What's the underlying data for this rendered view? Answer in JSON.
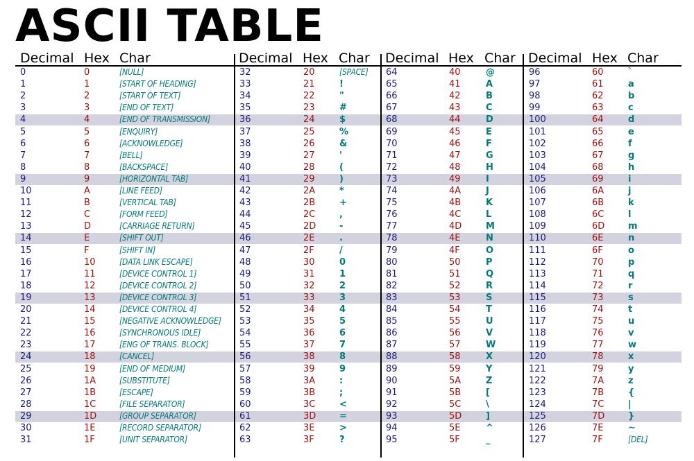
{
  "title": "ASCII TABLE",
  "headers": {
    "decimal": "Decimal",
    "hex": "Hex",
    "char": "Char"
  },
  "rows": [
    [
      "0",
      "0",
      "[NULL]"
    ],
    [
      "1",
      "1",
      "[START OF HEADING]"
    ],
    [
      "2",
      "2",
      "[START OF TEXT]"
    ],
    [
      "3",
      "3",
      "[END OF TEXT]"
    ],
    [
      "4",
      "4",
      "[END OF TRANSMISSION]"
    ],
    [
      "5",
      "5",
      "[ENQUIRY]"
    ],
    [
      "6",
      "6",
      "[ACKNOWLEDGE]"
    ],
    [
      "7",
      "7",
      "[BELL]"
    ],
    [
      "8",
      "8",
      "[BACKSPACE]"
    ],
    [
      "9",
      "9",
      "[HORIZONTAL TAB]"
    ],
    [
      "10",
      "A",
      "[LINE FEED]"
    ],
    [
      "11",
      "B",
      "[VERTICAL TAB]"
    ],
    [
      "12",
      "C",
      "[FORM FEED]"
    ],
    [
      "13",
      "D",
      "[CARRIAGE RETURN]"
    ],
    [
      "14",
      "E",
      "[SHIFT OUT]"
    ],
    [
      "15",
      "F",
      "[SHIFT IN]"
    ],
    [
      "16",
      "10",
      "[DATA LINK ESCAPE]"
    ],
    [
      "17",
      "11",
      "[DEVICE CONTROL 1]"
    ],
    [
      "18",
      "12",
      "[DEVICE CONTROL 2]"
    ],
    [
      "19",
      "13",
      "[DEVICE CONTROL 3]"
    ],
    [
      "20",
      "14",
      "[DEVICE CONTROL 4]"
    ],
    [
      "21",
      "15",
      "[NEGATIVE ACKNOWLEDGE]"
    ],
    [
      "22",
      "16",
      "[SYNCHRONOUS IDLE]"
    ],
    [
      "23",
      "17",
      "[ENG OF TRANS. BLOCK]"
    ],
    [
      "24",
      "18",
      "[CANCEL]"
    ],
    [
      "25",
      "19",
      "[END OF MEDIUM]"
    ],
    [
      "26",
      "1A",
      "[SUBSTITUTE]"
    ],
    [
      "27",
      "1B",
      "[ESCAPE]"
    ],
    [
      "28",
      "1C",
      "[FILE SEPARATOR]"
    ],
    [
      "29",
      "1D",
      "[GROUP SEPARATOR]"
    ],
    [
      "30",
      "1E",
      "[RECORD SEPARATOR]"
    ],
    [
      "31",
      "1F",
      "[UNIT SEPARATOR]"
    ],
    [
      "32",
      "20",
      "[SPACE]"
    ],
    [
      "33",
      "21",
      "!"
    ],
    [
      "34",
      "22",
      "\""
    ],
    [
      "35",
      "23",
      "#"
    ],
    [
      "36",
      "24",
      "$"
    ],
    [
      "37",
      "25",
      "%"
    ],
    [
      "38",
      "26",
      "&"
    ],
    [
      "39",
      "27",
      "'"
    ],
    [
      "40",
      "28",
      "("
    ],
    [
      "41",
      "29",
      ")"
    ],
    [
      "42",
      "2A",
      "*"
    ],
    [
      "43",
      "2B",
      "+"
    ],
    [
      "44",
      "2C",
      ","
    ],
    [
      "45",
      "2D",
      "-"
    ],
    [
      "46",
      "2E",
      "."
    ],
    [
      "47",
      "2F",
      "/"
    ],
    [
      "48",
      "30",
      "0"
    ],
    [
      "49",
      "31",
      "1"
    ],
    [
      "50",
      "32",
      "2"
    ],
    [
      "51",
      "33",
      "3"
    ],
    [
      "52",
      "34",
      "4"
    ],
    [
      "53",
      "35",
      "5"
    ],
    [
      "54",
      "36",
      "6"
    ],
    [
      "55",
      "37",
      "7"
    ],
    [
      "56",
      "38",
      "8"
    ],
    [
      "57",
      "39",
      "9"
    ],
    [
      "58",
      "3A",
      ":"
    ],
    [
      "59",
      "3B",
      ";"
    ],
    [
      "60",
      "3C",
      "<"
    ],
    [
      "61",
      "3D",
      "="
    ],
    [
      "62",
      "3E",
      ">"
    ],
    [
      "63",
      "3F",
      "?"
    ],
    [
      "64",
      "40",
      "@"
    ],
    [
      "65",
      "41",
      "A"
    ],
    [
      "66",
      "42",
      "B"
    ],
    [
      "67",
      "43",
      "C"
    ],
    [
      "68",
      "44",
      "D"
    ],
    [
      "69",
      "45",
      "E"
    ],
    [
      "70",
      "46",
      "F"
    ],
    [
      "71",
      "47",
      "G"
    ],
    [
      "72",
      "48",
      "H"
    ],
    [
      "73",
      "49",
      "I"
    ],
    [
      "74",
      "4A",
      "J"
    ],
    [
      "75",
      "4B",
      "K"
    ],
    [
      "76",
      "4C",
      "L"
    ],
    [
      "77",
      "4D",
      "M"
    ],
    [
      "78",
      "4E",
      "N"
    ],
    [
      "79",
      "4F",
      "O"
    ],
    [
      "80",
      "50",
      "P"
    ],
    [
      "81",
      "51",
      "Q"
    ],
    [
      "82",
      "52",
      "R"
    ],
    [
      "83",
      "53",
      "S"
    ],
    [
      "84",
      "54",
      "T"
    ],
    [
      "85",
      "55",
      "U"
    ],
    [
      "86",
      "56",
      "V"
    ],
    [
      "87",
      "57",
      "W"
    ],
    [
      "88",
      "58",
      "X"
    ],
    [
      "89",
      "59",
      "Y"
    ],
    [
      "90",
      "5A",
      "Z"
    ],
    [
      "91",
      "5B",
      "["
    ],
    [
      "92",
      "5C",
      "\\"
    ],
    [
      "93",
      "5D",
      "]"
    ],
    [
      "94",
      "5E",
      "^"
    ],
    [
      "95",
      "5F",
      "_"
    ],
    [
      "96",
      "60",
      "`"
    ],
    [
      "97",
      "61",
      "a"
    ],
    [
      "98",
      "62",
      "b"
    ],
    [
      "99",
      "63",
      "c"
    ],
    [
      "100",
      "64",
      "d"
    ],
    [
      "101",
      "65",
      "e"
    ],
    [
      "102",
      "66",
      "f"
    ],
    [
      "103",
      "67",
      "g"
    ],
    [
      "104",
      "68",
      "h"
    ],
    [
      "105",
      "69",
      "i"
    ],
    [
      "106",
      "6A",
      "j"
    ],
    [
      "107",
      "6B",
      "k"
    ],
    [
      "108",
      "6C",
      "l"
    ],
    [
      "109",
      "6D",
      "m"
    ],
    [
      "110",
      "6E",
      "n"
    ],
    [
      "111",
      "6F",
      "o"
    ],
    [
      "112",
      "70",
      "p"
    ],
    [
      "113",
      "71",
      "q"
    ],
    [
      "114",
      "72",
      "r"
    ],
    [
      "115",
      "73",
      "s"
    ],
    [
      "116",
      "74",
      "t"
    ],
    [
      "117",
      "75",
      "u"
    ],
    [
      "118",
      "76",
      "v"
    ],
    [
      "119",
      "77",
      "w"
    ],
    [
      "120",
      "78",
      "x"
    ],
    [
      "121",
      "79",
      "y"
    ],
    [
      "122",
      "7A",
      "z"
    ],
    [
      "123",
      "7B",
      "{"
    ],
    [
      "124",
      "7C",
      "|"
    ],
    [
      "125",
      "7D",
      "}"
    ],
    [
      "126",
      "7E",
      "~"
    ],
    [
      "127",
      "7F",
      "[DEL]"
    ]
  ],
  "colors": {
    "decimal": "#1a1a7a",
    "hex": "#a01010",
    "char": "#007a7a",
    "stripe": "#d3d3e0"
  }
}
